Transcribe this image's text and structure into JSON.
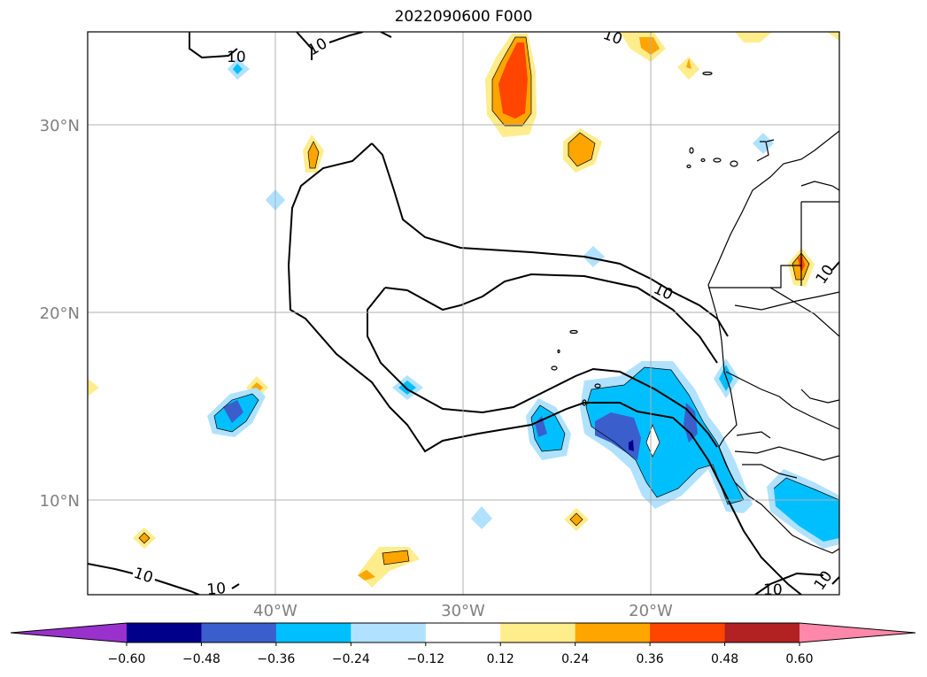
{
  "title": "2022090600 F000",
  "lat_labels": [
    "30°N",
    "20°N",
    "10°N"
  ],
  "lon_labels": [
    "40°W",
    "30°W",
    "20°W"
  ],
  "colorbar": {
    "tick_labels": [
      "−0.60",
      "−0.48",
      "−0.36",
      "−0.24",
      "−0.12",
      "0.12",
      "0.24",
      "0.36",
      "0.48",
      "0.60"
    ],
    "colors": [
      "#9932cc",
      "#00008b",
      "#3a5fcd",
      "#00bfff",
      "#b0e2ff",
      "#ffffff",
      "#ffec8b",
      "#ffa500",
      "#ff4500",
      "#b22222",
      "#ff88aa"
    ]
  },
  "contour_labels": [
    "10",
    "10",
    "10",
    "10",
    "10",
    "10",
    "10",
    "10",
    "10"
  ],
  "colors": {
    "grid": "#b0b0b0",
    "axis_text": "#808080",
    "coast": "#000000"
  }
}
